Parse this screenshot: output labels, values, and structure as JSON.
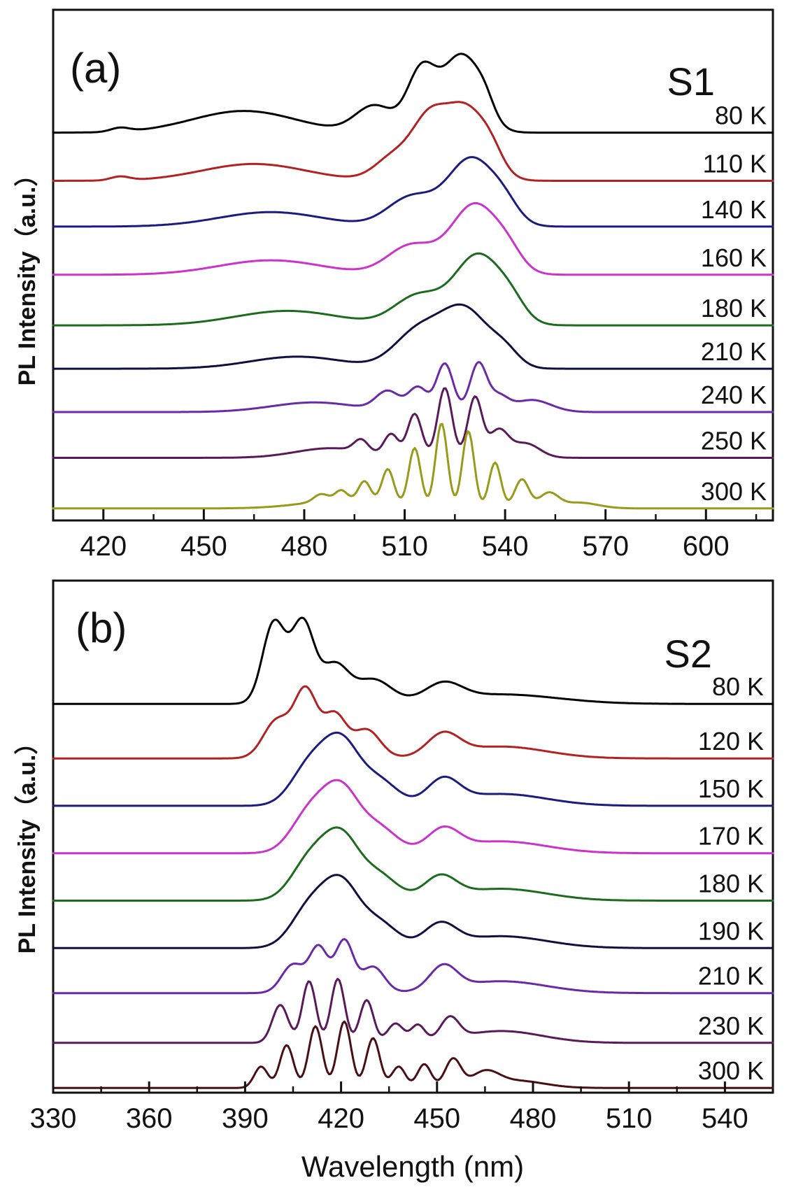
{
  "chart_data": [
    {
      "type": "line",
      "panel_label": "(a)",
      "sample_label": "S1",
      "ylabel": "PL Intensity（a.u.）",
      "xlabel": "",
      "xlim": [
        405,
        620
      ],
      "ylim": [
        0,
        10.6
      ],
      "xticks": [
        420,
        450,
        480,
        510,
        540,
        570,
        600
      ],
      "xtick_labels": [
        "420",
        "450",
        "480",
        "510",
        "540",
        "570",
        "600"
      ],
      "minor_xticks": [
        435,
        465,
        495,
        525,
        555,
        585,
        615
      ],
      "legend_position": "right",
      "series": [
        {
          "name": "80 K",
          "color": "#000000",
          "offset": 8.0,
          "baseline": 0.05,
          "peaks": [
            [
              425,
              0.08,
              4
            ],
            [
              462,
              0.45,
              22
            ],
            [
              501,
              0.55,
              8
            ],
            [
              515,
              1.25,
              6
            ],
            [
              527,
              1.6,
              8
            ],
            [
              534,
              0.3,
              4
            ]
          ]
        },
        {
          "name": "110 K",
          "color": "#b22222",
          "offset": 7.0,
          "baseline": 0.05,
          "peaks": [
            [
              425,
              0.08,
              4
            ],
            [
              465,
              0.35,
              22
            ],
            [
              507,
              0.5,
              8
            ],
            [
              517,
              1.05,
              7
            ],
            [
              528,
              1.5,
              9
            ],
            [
              536,
              0.3,
              5
            ]
          ]
        },
        {
          "name": "140 K",
          "color": "#1c1c80",
          "offset": 6.05,
          "baseline": 0.05,
          "peaks": [
            [
              470,
              0.3,
              22
            ],
            [
              512,
              0.6,
              10
            ],
            [
              530,
              1.4,
              10
            ],
            [
              540,
              0.3,
              6
            ]
          ]
        },
        {
          "name": "160 K",
          "color": "#cc33cc",
          "offset": 5.05,
          "baseline": 0.05,
          "peaks": [
            [
              470,
              0.3,
              22
            ],
            [
              512,
              0.6,
              10
            ],
            [
              531,
              1.45,
              10
            ],
            [
              541,
              0.3,
              6
            ]
          ]
        },
        {
          "name": "180 K",
          "color": "#1d6b1d",
          "offset": 4.0,
          "baseline": 0.05,
          "peaks": [
            [
              475,
              0.3,
              22
            ],
            [
              514,
              0.6,
              10
            ],
            [
              532,
              1.45,
              10
            ],
            [
              542,
              0.3,
              6
            ]
          ]
        },
        {
          "name": "210 K",
          "color": "#101040",
          "offset": 3.1,
          "baseline": 0.05,
          "peaks": [
            [
              478,
              0.25,
              20
            ],
            [
              514,
              0.75,
              10
            ],
            [
              528,
              1.2,
              10
            ],
            [
              540,
              0.3,
              6
            ]
          ]
        },
        {
          "name": "240 K",
          "color": "#6a2aa8",
          "offset": 2.2,
          "baseline": 0.05,
          "peaks": [
            [
              483,
              0.2,
              18
            ],
            [
              505,
              0.4,
              5
            ],
            [
              514,
              0.5,
              4
            ],
            [
              522,
              1.0,
              3.5
            ],
            [
              532,
              1.0,
              3.5
            ],
            [
              538,
              0.3,
              4
            ],
            [
              548,
              0.25,
              8
            ]
          ]
        },
        {
          "name": "250 K",
          "color": "#5a1a5a",
          "offset": 1.25,
          "baseline": 0.05,
          "peaks": [
            [
              488,
              0.2,
              15
            ],
            [
              497,
              0.25,
              3
            ],
            [
              506,
              0.45,
              3
            ],
            [
              513,
              0.9,
              3
            ],
            [
              522,
              1.45,
              3
            ],
            [
              531,
              1.25,
              3
            ],
            [
              538,
              0.55,
              4
            ],
            [
              546,
              0.3,
              6
            ]
          ]
        },
        {
          "name": "300 K",
          "color": "#9a9a1a",
          "offset": 0.25,
          "baseline": 0.0,
          "peaks": [
            [
              493,
              0.18,
              18
            ],
            [
              485,
              0.15,
              3
            ],
            [
              491,
              0.2,
              2.5
            ],
            [
              498,
              0.4,
              2.5
            ],
            [
              505,
              0.7,
              2.5
            ],
            [
              513,
              1.2,
              2.5
            ],
            [
              521,
              1.75,
              2.5
            ],
            [
              529,
              1.6,
              2.5
            ],
            [
              537,
              0.95,
              2.5
            ],
            [
              545,
              0.6,
              3
            ],
            [
              553,
              0.3,
              4
            ],
            [
              562,
              0.12,
              8
            ]
          ]
        }
      ]
    },
    {
      "type": "line",
      "panel_label": "(b)",
      "sample_label": "S2",
      "ylabel": "PL Intensity（a.u.）",
      "xlabel": "Wavelength (nm)",
      "xlim": [
        330,
        555
      ],
      "ylim": [
        0,
        10.8
      ],
      "xticks": [
        330,
        360,
        390,
        420,
        450,
        480,
        510,
        540
      ],
      "xtick_labels": [
        "330",
        "360",
        "390",
        "420",
        "450",
        "480",
        "510",
        "540"
      ],
      "minor_xticks": [
        345,
        375,
        405,
        435,
        465,
        495,
        525
      ],
      "legend_position": "right",
      "series": [
        {
          "name": "80 K",
          "color": "#000000",
          "offset": 8.2,
          "baseline": 0.0,
          "peaks": [
            [
              399,
              1.7,
              5
            ],
            [
              408,
              1.7,
              5
            ],
            [
              418,
              0.8,
              6
            ],
            [
              430,
              0.5,
              8
            ],
            [
              452,
              0.35,
              8
            ],
            [
              470,
              0.2,
              25
            ]
          ]
        },
        {
          "name": "120 K",
          "color": "#b22222",
          "offset": 7.05,
          "baseline": 0.0,
          "peaks": [
            [
              400,
              0.8,
              6
            ],
            [
              409,
              1.4,
              5
            ],
            [
              418,
              0.9,
              5
            ],
            [
              428,
              0.6,
              6
            ],
            [
              452,
              0.45,
              7
            ],
            [
              470,
              0.25,
              20
            ]
          ]
        },
        {
          "name": "150 K",
          "color": "#1c1c80",
          "offset": 6.05,
          "baseline": 0.0,
          "peaks": [
            [
              410,
              0.8,
              8
            ],
            [
              420,
              1.3,
              8
            ],
            [
              432,
              0.5,
              8
            ],
            [
              452,
              0.5,
              7
            ],
            [
              470,
              0.25,
              20
            ]
          ]
        },
        {
          "name": "170 K",
          "color": "#cc33cc",
          "offset": 5.05,
          "baseline": 0.0,
          "peaks": [
            [
              410,
              0.8,
              8
            ],
            [
              420,
              1.3,
              8
            ],
            [
              432,
              0.5,
              8
            ],
            [
              452,
              0.45,
              7
            ],
            [
              470,
              0.25,
              20
            ]
          ]
        },
        {
          "name": "180 K",
          "color": "#1d6b1d",
          "offset": 4.05,
          "baseline": 0.0,
          "peaks": [
            [
              410,
              0.8,
              8
            ],
            [
              420,
              1.3,
              8
            ],
            [
              432,
              0.5,
              8
            ],
            [
              451,
              0.45,
              7
            ],
            [
              470,
              0.25,
              20
            ]
          ]
        },
        {
          "name": "190 K",
          "color": "#101040",
          "offset": 3.05,
          "baseline": 0.0,
          "peaks": [
            [
              410,
              0.8,
              8
            ],
            [
              420,
              1.3,
              8
            ],
            [
              432,
              0.5,
              8
            ],
            [
              451,
              0.45,
              7
            ],
            [
              470,
              0.25,
              20
            ]
          ]
        },
        {
          "name": "210 K",
          "color": "#6a2aa8",
          "offset": 2.1,
          "baseline": 0.0,
          "peaks": [
            [
              405,
              0.6,
              5
            ],
            [
              413,
              0.95,
              4
            ],
            [
              421,
              1.1,
              4
            ],
            [
              430,
              0.55,
              5
            ],
            [
              452,
              0.5,
              6
            ],
            [
              470,
              0.25,
              20
            ]
          ]
        },
        {
          "name": "230 K",
          "color": "#5a1a5a",
          "offset": 1.05,
          "baseline": 0.0,
          "peaks": [
            [
              401,
              0.8,
              3.5
            ],
            [
              410,
              1.3,
              3
            ],
            [
              419,
              1.35,
              3
            ],
            [
              428,
              0.9,
              3
            ],
            [
              437,
              0.4,
              3.5
            ],
            [
              444,
              0.35,
              3
            ],
            [
              454,
              0.45,
              4
            ],
            [
              470,
              0.25,
              18
            ]
          ]
        },
        {
          "name": "300 K",
          "color": "#4a0f14",
          "offset": 0.1,
          "baseline": 0.0,
          "peaks": [
            [
              395,
              0.45,
              3
            ],
            [
              403,
              0.9,
              3
            ],
            [
              412,
              1.3,
              3
            ],
            [
              421,
              1.4,
              3
            ],
            [
              430,
              1.05,
              3
            ],
            [
              438,
              0.45,
              3
            ],
            [
              446,
              0.5,
              3
            ],
            [
              455,
              0.6,
              3.5
            ],
            [
              465,
              0.3,
              6
            ],
            [
              475,
              0.15,
              12
            ]
          ]
        }
      ]
    }
  ]
}
